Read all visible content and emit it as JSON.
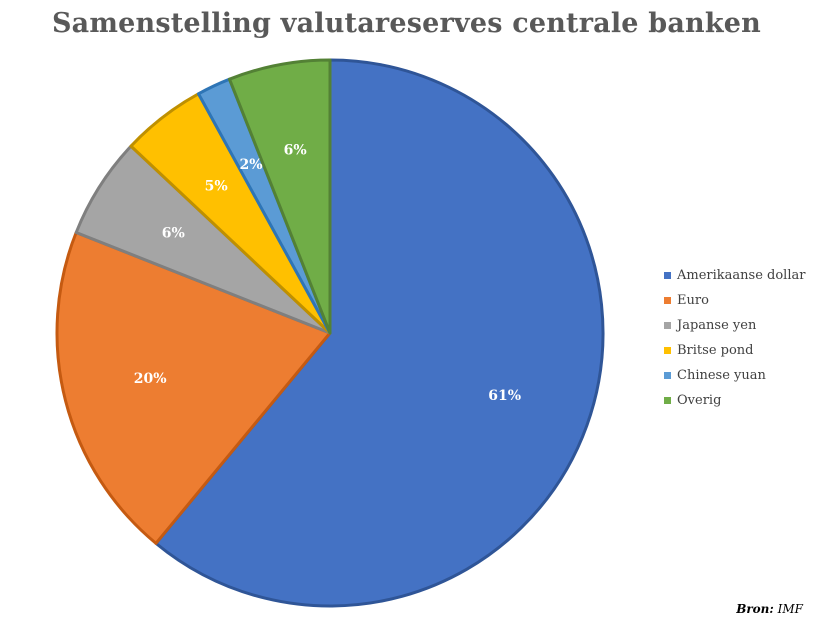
{
  "chart_data": {
    "type": "pie",
    "title": "Samenstelling valutareserves centrale banken",
    "categories": [
      "Amerikaanse dollar",
      "Euro",
      "Japanse yen",
      "Britse pond",
      "Chinese yuan",
      "Overig"
    ],
    "values": [
      61,
      20,
      6,
      5,
      2,
      6
    ],
    "labels": [
      "61%",
      "20%",
      "6%",
      "5%",
      "2%",
      "6%"
    ],
    "colors": [
      "#4472C4",
      "#ED7D31",
      "#A5A5A5",
      "#FFC000",
      "#5B9BD5",
      "#70AD47"
    ],
    "edge_colors": [
      "#2F5597",
      "#C55A11",
      "#7F7F7F",
      "#BF9000",
      "#2E75B6",
      "#538135"
    ],
    "start": "12 o'clock",
    "direction": "clockwise",
    "legend_position": "right"
  },
  "source": {
    "label": "Bron:",
    "value": "IMF"
  }
}
